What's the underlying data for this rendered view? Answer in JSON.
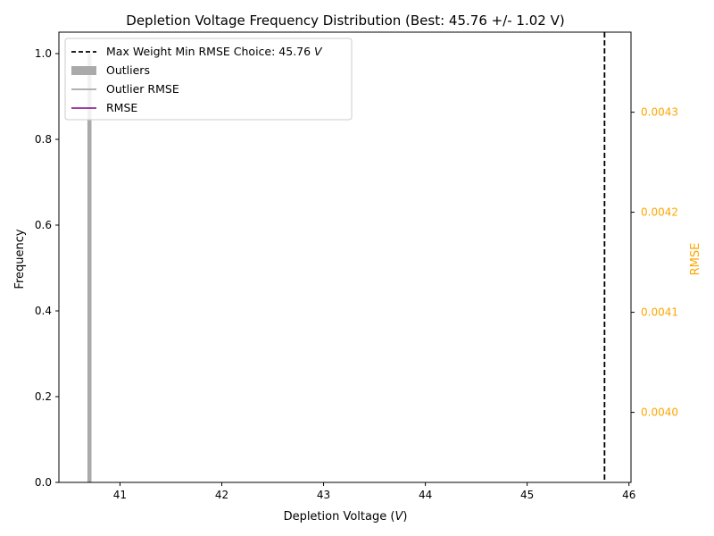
{
  "chart_data": {
    "type": "bar",
    "title": "Depletion Voltage Frequency Distribution (Best: 45.76 +/- 1.02 V)",
    "xlabel_main": "Depletion Voltage (",
    "xlabel_unit": "V",
    "xlabel_close": ")",
    "ylabel": "Frequency",
    "ylabel_right": "RMSE",
    "xlim": [
      40.4,
      46.02
    ],
    "ylim": [
      0,
      1.05
    ],
    "ylim_right": [
      0.00393,
      0.00438
    ],
    "x_ticks": [
      "41",
      "42",
      "43",
      "44",
      "45",
      "46"
    ],
    "x_tick_values": [
      41,
      42,
      43,
      44,
      45,
      46
    ],
    "y_ticks": [
      "0.0",
      "0.2",
      "0.4",
      "0.6",
      "0.8",
      "1.0"
    ],
    "y_tick_values": [
      0,
      0.2,
      0.4,
      0.6,
      0.8,
      1.0
    ],
    "y_right_ticks": [
      "0.0040",
      "0.0041",
      "0.0042",
      "0.0043"
    ],
    "y_right_tick_values": [
      0.004,
      0.0041,
      0.0042,
      0.0043
    ],
    "outlier_bars": [
      {
        "x": 40.7,
        "width": 0.04,
        "value": 1.0
      }
    ],
    "best_value": 45.76,
    "best_uncertainty": 1.02,
    "legend": [
      {
        "kind": "dashed-line",
        "label": "Max Weight Min RMSE Choice: 45.76 ",
        "label_unit": "V",
        "color": "#000000"
      },
      {
        "kind": "patch",
        "label": "Outliers",
        "color": "#aaaaaa"
      },
      {
        "kind": "line",
        "label": "Outlier RMSE",
        "color": "#999999"
      },
      {
        "kind": "line",
        "label": "RMSE",
        "color": "#800080"
      }
    ],
    "legend_position": "top-left",
    "colors": {
      "outliers": "#aaaaaa",
      "right_axis": "#ffa500",
      "best_line": "#000000"
    },
    "grid": false
  }
}
